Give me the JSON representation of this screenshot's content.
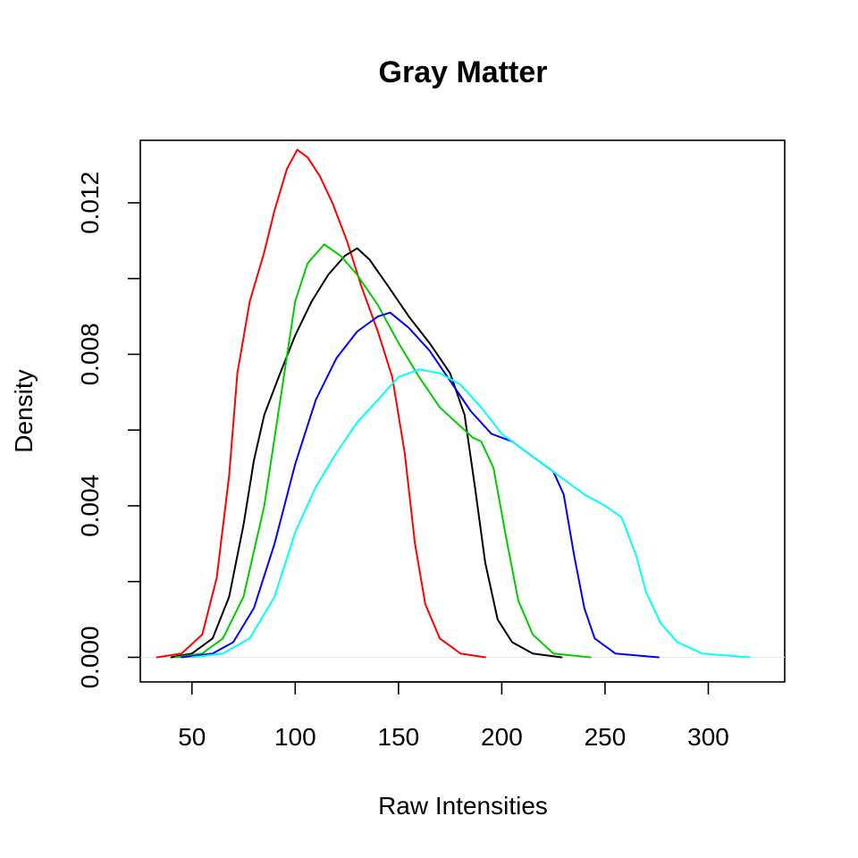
{
  "chart_data": {
    "type": "line",
    "title": "Gray Matter",
    "xlabel": "Raw Intensities",
    "ylabel": "Density",
    "xlim": [
      25,
      337
    ],
    "ylim": [
      -0.00065,
      0.01365
    ],
    "x_ticks": [
      50,
      100,
      150,
      200,
      250,
      300
    ],
    "x_tick_labels": [
      "50",
      "100",
      "150",
      "200",
      "250",
      "300"
    ],
    "y_ticks": [
      0,
      0.002,
      0.004,
      0.006,
      0.008,
      0.01,
      0.012
    ],
    "y_tick_labels": [
      "0.000",
      "",
      "0.004",
      "",
      "0.008",
      "",
      "0.012"
    ],
    "zero_line": true,
    "grid": false,
    "legend": "none",
    "series": [
      {
        "color": "#ff0000",
        "points": [
          [
            33,
            0
          ],
          [
            45,
            0.0001
          ],
          [
            55,
            0.0006
          ],
          [
            62,
            0.0021
          ],
          [
            68,
            0.0048
          ],
          [
            72,
            0.0075
          ],
          [
            78,
            0.0094
          ],
          [
            85,
            0.0107
          ],
          [
            90,
            0.0118
          ],
          [
            96,
            0.0129
          ],
          [
            101,
            0.0134
          ],
          [
            106,
            0.0132
          ],
          [
            112,
            0.0127
          ],
          [
            118,
            0.012
          ],
          [
            125,
            0.011
          ],
          [
            132,
            0.0098
          ],
          [
            140,
            0.0086
          ],
          [
            147,
            0.0074
          ],
          [
            153,
            0.0054
          ],
          [
            158,
            0.003
          ],
          [
            163,
            0.0014
          ],
          [
            170,
            0.0005
          ],
          [
            180,
            0.0001
          ],
          [
            192,
            0
          ]
        ]
      },
      {
        "color": "#000000",
        "points": [
          [
            40,
            0
          ],
          [
            50,
            0.0001
          ],
          [
            60,
            0.0005
          ],
          [
            68,
            0.0016
          ],
          [
            75,
            0.0035
          ],
          [
            80,
            0.0052
          ],
          [
            85,
            0.0064
          ],
          [
            92,
            0.0074
          ],
          [
            100,
            0.0085
          ],
          [
            108,
            0.0094
          ],
          [
            116,
            0.0101
          ],
          [
            124,
            0.0106
          ],
          [
            130,
            0.0108
          ],
          [
            136,
            0.0105
          ],
          [
            145,
            0.0098
          ],
          [
            155,
            0.009
          ],
          [
            165,
            0.0083
          ],
          [
            175,
            0.0075
          ],
          [
            182,
            0.0064
          ],
          [
            187,
            0.0045
          ],
          [
            192,
            0.0025
          ],
          [
            198,
            0.001
          ],
          [
            205,
            0.0004
          ],
          [
            215,
            0.0001
          ],
          [
            229,
            0
          ]
        ]
      },
      {
        "color": "#00cc00",
        "points": [
          [
            42,
            0
          ],
          [
            55,
            0.0001
          ],
          [
            65,
            0.0005
          ],
          [
            75,
            0.0016
          ],
          [
            85,
            0.004
          ],
          [
            95,
            0.0076
          ],
          [
            100,
            0.0094
          ],
          [
            106,
            0.0104
          ],
          [
            114,
            0.0109
          ],
          [
            122,
            0.0106
          ],
          [
            130,
            0.0101
          ],
          [
            140,
            0.0093
          ],
          [
            150,
            0.0083
          ],
          [
            160,
            0.0074
          ],
          [
            170,
            0.0066
          ],
          [
            180,
            0.0061
          ],
          [
            186,
            0.0058
          ],
          [
            190,
            0.0057
          ],
          [
            196,
            0.005
          ],
          [
            202,
            0.0032
          ],
          [
            208,
            0.0015
          ],
          [
            215,
            0.0006
          ],
          [
            225,
            0.0001
          ],
          [
            243,
            0
          ]
        ]
      },
      {
        "color": "#0000ff",
        "points": [
          [
            45,
            0
          ],
          [
            60,
            0.0001
          ],
          [
            70,
            0.0004
          ],
          [
            80,
            0.0013
          ],
          [
            90,
            0.003
          ],
          [
            100,
            0.0051
          ],
          [
            110,
            0.0068
          ],
          [
            120,
            0.0079
          ],
          [
            130,
            0.0086
          ],
          [
            140,
            0.009
          ],
          [
            146,
            0.0091
          ],
          [
            155,
            0.0087
          ],
          [
            165,
            0.0081
          ],
          [
            175,
            0.0073
          ],
          [
            185,
            0.0065
          ],
          [
            195,
            0.0059
          ],
          [
            205,
            0.0057
          ],
          [
            215,
            0.0053
          ],
          [
            225,
            0.0049
          ],
          [
            230,
            0.0043
          ],
          [
            235,
            0.0027
          ],
          [
            240,
            0.0013
          ],
          [
            245,
            0.0005
          ],
          [
            255,
            0.0001
          ],
          [
            276,
            0
          ]
        ]
      },
      {
        "color": "#00ffff",
        "points": [
          [
            50,
            0
          ],
          [
            65,
            0.0001
          ],
          [
            78,
            0.0005
          ],
          [
            90,
            0.0016
          ],
          [
            100,
            0.0033
          ],
          [
            110,
            0.0045
          ],
          [
            120,
            0.0054
          ],
          [
            130,
            0.0062
          ],
          [
            140,
            0.0068
          ],
          [
            150,
            0.0074
          ],
          [
            160,
            0.0076
          ],
          [
            170,
            0.0075
          ],
          [
            180,
            0.0072
          ],
          [
            190,
            0.0066
          ],
          [
            200,
            0.0059
          ],
          [
            210,
            0.0055
          ],
          [
            220,
            0.0051
          ],
          [
            230,
            0.0047
          ],
          [
            240,
            0.0043
          ],
          [
            250,
            0.004
          ],
          [
            258,
            0.0037
          ],
          [
            265,
            0.0027
          ],
          [
            270,
            0.0017
          ],
          [
            277,
            0.0009
          ],
          [
            285,
            0.0004
          ],
          [
            297,
            0.0001
          ],
          [
            320,
            0
          ]
        ]
      }
    ]
  }
}
